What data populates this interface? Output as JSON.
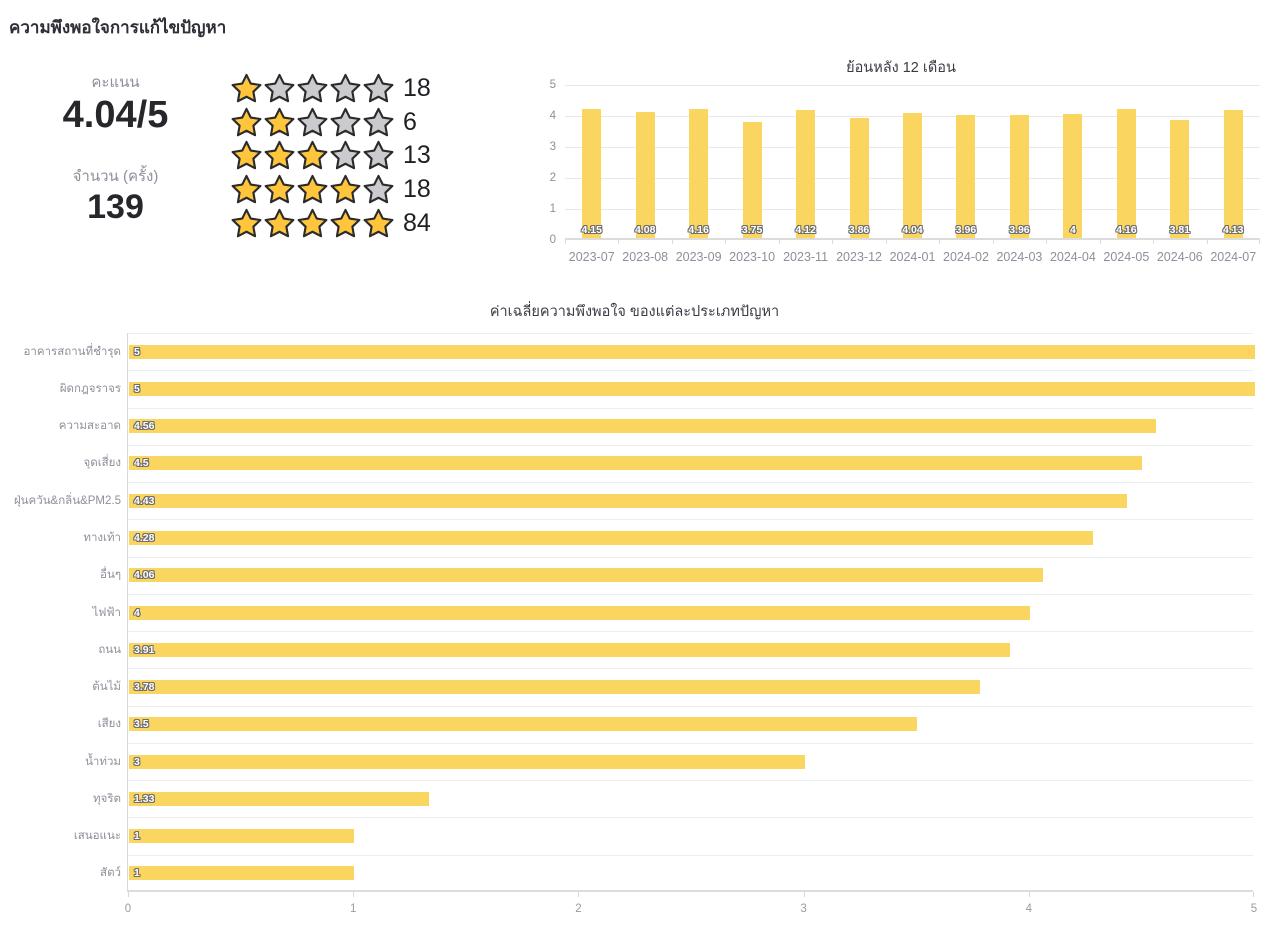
{
  "page": {
    "title": "ความพึงพอใจการแก้ไขปัญหา"
  },
  "summary": {
    "score_label": "คะแนน",
    "score_value": "4.04/5",
    "count_label": "จำนวน (ครั้ง)",
    "count_value": "139",
    "stars_per_row": 5,
    "star_rows": [
      {
        "stars": 1,
        "count": "18"
      },
      {
        "stars": 2,
        "count": "6"
      },
      {
        "stars": 3,
        "count": "13"
      },
      {
        "stars": 4,
        "count": "18"
      },
      {
        "stars": 5,
        "count": "84"
      }
    ]
  },
  "chart_data": [
    {
      "id": "monthly",
      "type": "bar",
      "title": "ย้อนหลัง 12 เดือน",
      "categories": [
        "2023-07",
        "2023-08",
        "2023-09",
        "2023-10",
        "2023-11",
        "2023-12",
        "2024-01",
        "2024-02",
        "2024-03",
        "2024-04",
        "2024-05",
        "2024-06",
        "2024-07"
      ],
      "values": [
        4.15,
        4.08,
        4.16,
        3.75,
        4.12,
        3.86,
        4.04,
        3.96,
        3.96,
        4,
        4.16,
        3.81,
        4.13
      ],
      "value_labels": [
        "4.15",
        "4.08",
        "4.16",
        "3.75",
        "4.12",
        "3.86",
        "4.04",
        "3.96",
        "3.96",
        "4",
        "4.16",
        "3.81",
        "4.13"
      ],
      "xlabel": "",
      "ylabel": "",
      "ylim": [
        0,
        5
      ],
      "yticks": [
        0,
        1,
        2,
        3,
        4,
        5
      ],
      "grid": true,
      "legend": false
    },
    {
      "id": "by-problem-type",
      "type": "bar",
      "orientation": "horizontal",
      "title": "ค่าเฉลี่ยความพึงพอใจ ของแต่ละประเภทปัญหา",
      "categories": [
        "อาคารสถานที่ชำรุด",
        "ผิดกฎจราจร",
        "ความสะอาด",
        "จุดเสี่ยง",
        "ฝุ่นควัน&กลิ่น&PM2.5",
        "ทางเท้า",
        "อื่นๆ",
        "ไฟฟ้า",
        "ถนน",
        "ต้นไม้",
        "เสียง",
        "น้ำท่วม",
        "ทุจริต",
        "เสนอแนะ",
        "สัตว์"
      ],
      "values": [
        5,
        5,
        4.56,
        4.5,
        4.43,
        4.28,
        4.06,
        4,
        3.91,
        3.78,
        3.5,
        3,
        1.33,
        1,
        1
      ],
      "value_labels": [
        "5",
        "5",
        "4.56",
        "4.5",
        "4.43",
        "4.28",
        "4.06",
        "4",
        "3.91",
        "3.78",
        "3.5",
        "3",
        "1.33",
        "1",
        "1"
      ],
      "xlabel": "",
      "ylabel": "",
      "xlim": [
        0,
        5
      ],
      "xticks": [
        0,
        1,
        2,
        3,
        4,
        5
      ],
      "grid": true,
      "legend": false
    }
  ],
  "colors": {
    "background": "#FFFFFF",
    "bar": "#FAD560",
    "star_filled": "#FFC53D",
    "star_empty": "#CBCBCF",
    "star_outline": "#2B2B2B",
    "title_text": "#2F2F38",
    "muted_text": "#8F8F9C",
    "grid_line": "#E8E8E8",
    "axis_line": "#DCDCDC",
    "value_label_text": "#FFFFFF",
    "value_label_outline": "#6F6F6F"
  }
}
